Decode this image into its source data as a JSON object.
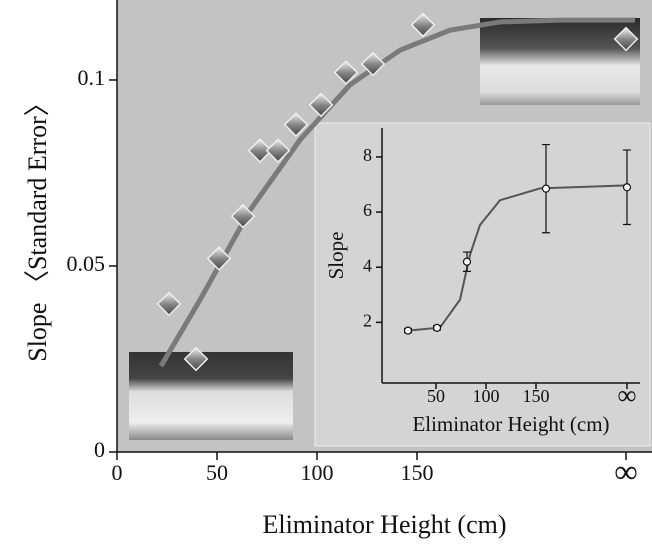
{
  "chart_data": [
    {
      "type": "scatter",
      "xlabel": "Eliminator Height (cm)",
      "ylabel": "Slope 〈Standard Error〉",
      "xlim": [
        0,
        267.5
      ],
      "ylim": [
        0,
        0.1215
      ],
      "xticks": [
        0,
        50,
        100,
        150,
        {
          "value": 254.5,
          "label": "∞"
        }
      ],
      "yticks": [
        0,
        0.05,
        0.1
      ],
      "x": [
        26,
        39.5,
        51,
        63,
        71.5,
        80.5,
        89.5,
        102,
        114.5,
        128,
        153,
        254.5
      ],
      "values": [
        0.0398,
        0.025,
        0.052,
        0.0634,
        0.081,
        0.081,
        0.088,
        0.0933,
        0.102,
        0.1043,
        0.1148,
        0.111
      ],
      "color": "#8a8a8a",
      "fit": {
        "x": [
          22,
          41.5,
          66.5,
          91.5,
          116.5,
          141.5,
          166.5,
          191.5,
          221.5,
          259
        ],
        "values": [
          0.0231,
          0.0409,
          0.065,
          0.0839,
          0.0987,
          0.108,
          0.1134,
          0.1156,
          0.1161,
          0.1161
        ],
        "color": "#7a7a7a"
      }
    },
    {
      "type": "errorbar",
      "xlabel": "Eliminator Height (cm)",
      "ylabel": "Slope",
      "xlim": [
        -4,
        254
      ],
      "ylim": [
        -0.2,
        9.05
      ],
      "xticks": [
        50,
        100,
        150,
        {
          "value": 241,
          "label": "∞"
        }
      ],
      "yticks": [
        2,
        4,
        6,
        8
      ],
      "x": [
        22,
        51,
        81,
        160,
        241
      ],
      "values": [
        1.7,
        1.8,
        4.2,
        6.85,
        6.9
      ],
      "errors": [
        0.08,
        0.08,
        0.35,
        1.6,
        1.35
      ],
      "color": "#ffffff",
      "fit": {
        "x": [
          22,
          54,
          74,
          84,
          94,
          114,
          154,
          241
        ],
        "values": [
          1.7,
          1.81,
          2.82,
          4.45,
          5.53,
          6.43,
          6.86,
          6.97
        ],
        "color": "#555555"
      }
    }
  ]
}
